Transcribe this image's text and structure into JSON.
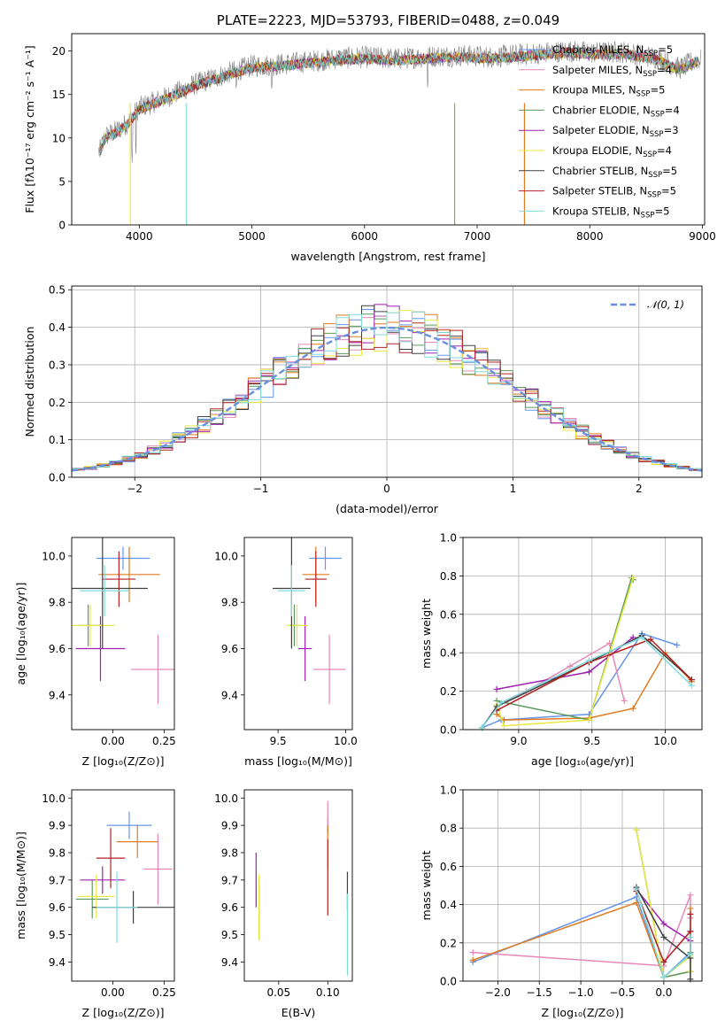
{
  "chart_data": [
    {
      "id": "spectrum",
      "type": "line",
      "title": "PLATE=2223, MJD=53793, FIBERID=0488, z=0.049",
      "xlabel": "wavelength [Angstrom, rest frame]",
      "ylabel": "Flux [fλ10⁻¹⁷ erg cm⁻² s⁻¹ A⁻¹]",
      "xlim": [
        3400,
        9020
      ],
      "ylim": [
        0,
        22
      ],
      "xticks": [
        4000,
        5000,
        6000,
        7000,
        8000,
        9000
      ],
      "yticks": [
        0,
        5,
        10,
        15,
        20
      ],
      "grid": false,
      "legend_position": "top-right",
      "data_color": "#808080",
      "spectrum_envelope": {
        "x": [
          3650,
          3700,
          3800,
          3900,
          4000,
          4100,
          4300,
          4500,
          4800,
          5000,
          5200,
          5500,
          5800,
          6000,
          6300,
          6600,
          6900,
          7100,
          7400,
          7600,
          7800,
          8000,
          8300,
          8600,
          8800,
          8950
        ],
        "y": [
          8.5,
          10.2,
          10.8,
          11.8,
          13.5,
          14.0,
          15.0,
          16.2,
          17.5,
          18.3,
          18.4,
          18.8,
          19.2,
          19.3,
          19.1,
          19.4,
          19.5,
          19.3,
          19.6,
          19.8,
          20.0,
          19.8,
          19.9,
          19.2,
          18.0,
          19.0
        ]
      },
      "legend": [
        {
          "label": "Chabrier MILES, N",
          "sub": "SSP",
          "val": "=5",
          "color": "#6495ED"
        },
        {
          "label": "Salpeter MILES, N",
          "sub": "SSP",
          "val": "=4",
          "color": "#E887B8"
        },
        {
          "label": "Kroupa MILES, N",
          "sub": "SSP",
          "val": "=5",
          "color": "#E07B20"
        },
        {
          "label": "Chabrier ELODIE, N",
          "sub": "SSP",
          "val": "=4",
          "color": "#5A9A5A"
        },
        {
          "label": "Salpeter ELODIE, N",
          "sub": "SSP",
          "val": "=3",
          "color": "#A020B0"
        },
        {
          "label": "Kroupa ELODIE, N",
          "sub": "SSP",
          "val": "=4",
          "color": "#E8E840"
        },
        {
          "label": "Chabrier STELIB, N",
          "sub": "SSP",
          "val": "=5",
          "color": "#404040"
        },
        {
          "label": "Salpeter STELIB, N",
          "sub": "SSP",
          "val": "=5",
          "color": "#B22222"
        },
        {
          "label": "Kroupa STELIB, N",
          "sub": "SSP",
          "val": "=5",
          "color": "#7FDBDB"
        }
      ]
    },
    {
      "id": "residuals",
      "type": "line",
      "xlabel": "(data-model)/error",
      "ylabel": "Normed distribution",
      "xlim": [
        -2.5,
        2.5
      ],
      "ylim": [
        0,
        0.51
      ],
      "xticks": [
        -2,
        -1,
        0,
        1,
        2
      ],
      "yticks": [
        0.0,
        0.1,
        0.2,
        0.3,
        0.4,
        0.5
      ],
      "grid": true,
      "legend_position": "top-right",
      "reference": {
        "label": "𝒩(0, 1)",
        "color": "#6A8FE0",
        "style": "dashed",
        "mean": 0,
        "sigma": 1
      },
      "bin_width": 0.1
    },
    {
      "id": "age_vs_Z",
      "type": "scatter",
      "xlabel": "Z [log₁₀(Z/Z⊙)]",
      "ylabel": "age  [log₁₀(age/yr)]",
      "xlim": [
        -0.2,
        0.3
      ],
      "ylim": [
        9.25,
        10.08
      ],
      "xticks": [
        0.0,
        0.25
      ],
      "yticks": [
        9.4,
        9.6,
        9.8,
        10.0
      ],
      "points": [
        {
          "x": 0.05,
          "y": 9.99,
          "xerr": 0.13,
          "yerr": 0.05,
          "color": "#6495ED"
        },
        {
          "x": 0.22,
          "y": 9.51,
          "xerr": 0.13,
          "yerr": 0.15,
          "color": "#E887B8"
        },
        {
          "x": 0.08,
          "y": 9.92,
          "xerr": 0.15,
          "yerr": 0.12,
          "color": "#E07B20"
        },
        {
          "x": -0.12,
          "y": 9.7,
          "xerr": 0.05,
          "yerr": 0.09,
          "color": "#5A9A5A"
        },
        {
          "x": -0.06,
          "y": 9.6,
          "xerr": 0.12,
          "yerr": 0.14,
          "color": "#A020B0"
        },
        {
          "x": -0.11,
          "y": 9.7,
          "xerr": 0.12,
          "yerr": 0.09,
          "color": "#E8E840"
        },
        {
          "x": -0.05,
          "y": 9.86,
          "xerr": 0.22,
          "yerr": 0.26,
          "color": "#404040"
        },
        {
          "x": 0.03,
          "y": 9.9,
          "xerr": 0.08,
          "yerr": 0.12,
          "color": "#B22222"
        },
        {
          "x": -0.04,
          "y": 9.85,
          "xerr": 0.12,
          "yerr": 0.11,
          "color": "#7FDBDB"
        }
      ]
    },
    {
      "id": "age_vs_mass",
      "type": "scatter",
      "xlabel": "mass [log₁₀(M/M⊙)]",
      "ylabel": "",
      "xlim": [
        9.25,
        10.05
      ],
      "ylim": [
        9.25,
        10.08
      ],
      "xticks": [
        9.5,
        10.0
      ],
      "yticks": [
        9.4,
        9.6,
        9.8,
        10.0
      ],
      "points": [
        {
          "x": 9.85,
          "y": 9.99,
          "xerr": 0.12,
          "yerr": 0.05,
          "color": "#6495ED"
        },
        {
          "x": 9.88,
          "y": 9.51,
          "xerr": 0.12,
          "yerr": 0.15,
          "color": "#E887B8"
        },
        {
          "x": 9.78,
          "y": 9.92,
          "xerr": 0.1,
          "yerr": 0.12,
          "color": "#E07B20"
        },
        {
          "x": 9.62,
          "y": 9.7,
          "xerr": 0.04,
          "yerr": 0.09,
          "color": "#5A9A5A"
        },
        {
          "x": 9.7,
          "y": 9.6,
          "xerr": 0.05,
          "yerr": 0.14,
          "color": "#A020B0"
        },
        {
          "x": 9.64,
          "y": 9.7,
          "xerr": 0.08,
          "yerr": 0.09,
          "color": "#E8E840"
        },
        {
          "x": 9.6,
          "y": 9.86,
          "xerr": 0.14,
          "yerr": 0.26,
          "color": "#404040"
        },
        {
          "x": 9.78,
          "y": 9.9,
          "xerr": 0.08,
          "yerr": 0.12,
          "color": "#B22222"
        },
        {
          "x": 9.6,
          "y": 9.85,
          "xerr": 0.1,
          "yerr": 0.11,
          "color": "#7FDBDB"
        }
      ]
    },
    {
      "id": "weights_vs_age",
      "type": "line",
      "xlabel": "age  [log₁₀(age/yr)]",
      "ylabel": "mass weight",
      "xlim": [
        8.62,
        10.25
      ],
      "ylim": [
        0,
        1.0
      ],
      "xticks": [
        9.0,
        9.5,
        10.0
      ],
      "yticks": [
        0.0,
        0.2,
        0.4,
        0.6,
        0.8,
        1.0
      ],
      "grid": true,
      "series": [
        {
          "color": "#6495ED",
          "x": [
            8.75,
            8.88,
            9.48,
            9.84,
            10.08
          ],
          "y": [
            0.01,
            0.05,
            0.08,
            0.5,
            0.44
          ]
        },
        {
          "color": "#E887B8",
          "x": [
            8.85,
            9.05,
            9.35,
            9.62,
            9.72
          ],
          "y": [
            0.12,
            0.2,
            0.33,
            0.45,
            0.15
          ]
        },
        {
          "color": "#E07B20",
          "x": [
            8.85,
            8.9,
            9.48,
            9.78,
            10.0,
            10.18
          ],
          "y": [
            0.08,
            0.05,
            0.06,
            0.11,
            0.4,
            0.25
          ]
        },
        {
          "color": "#5A9A5A",
          "x": [
            8.85,
            9.48,
            9.77,
            9.78
          ],
          "y": [
            0.15,
            0.05,
            0.79,
            0.78
          ]
        },
        {
          "color": "#A020B0",
          "x": [
            8.85,
            9.48,
            9.78
          ],
          "y": [
            0.21,
            0.3,
            0.48
          ]
        },
        {
          "color": "#E8E840",
          "x": [
            8.85,
            8.9,
            9.48,
            9.78
          ],
          "y": [
            0.13,
            0.02,
            0.05,
            0.79
          ]
        },
        {
          "color": "#404040",
          "x": [
            8.75,
            8.85,
            9.48,
            9.84,
            10.18
          ],
          "y": [
            0.01,
            0.12,
            0.35,
            0.49,
            0.26
          ]
        },
        {
          "color": "#B22222",
          "x": [
            8.85,
            9.48,
            9.9,
            10.18
          ],
          "y": [
            0.1,
            0.35,
            0.47,
            0.26
          ]
        },
        {
          "color": "#7FDBDB",
          "x": [
            8.75,
            8.88,
            9.48,
            9.84,
            10.18
          ],
          "y": [
            0.01,
            0.14,
            0.36,
            0.48,
            0.23
          ]
        }
      ]
    },
    {
      "id": "mass_vs_Z",
      "type": "scatter",
      "xlabel": "Z [log₁₀(Z/Z⊙)]",
      "ylabel": "mass [log₁₀(M/M⊙)]",
      "xlim": [
        -0.2,
        0.3
      ],
      "ylim": [
        9.33,
        10.03
      ],
      "xticks": [
        0.0,
        0.25
      ],
      "yticks": [
        9.4,
        9.5,
        9.6,
        9.7,
        9.8,
        9.9,
        10.0
      ],
      "points": [
        {
          "x": 0.08,
          "y": 9.9,
          "xerr": 0.11,
          "yerr": 0.05,
          "color": "#6495ED"
        },
        {
          "x": 0.22,
          "y": 9.74,
          "xerr": 0.07,
          "yerr": 0.13,
          "color": "#E887B8"
        },
        {
          "x": 0.12,
          "y": 9.84,
          "xerr": 0.1,
          "yerr": 0.06,
          "color": "#E07B20"
        },
        {
          "x": -0.1,
          "y": 9.63,
          "xerr": 0.08,
          "yerr": 0.07,
          "color": "#5A9A5A"
        },
        {
          "x": -0.05,
          "y": 9.7,
          "xerr": 0.11,
          "yerr": 0.05,
          "color": "#A020B0"
        },
        {
          "x": -0.08,
          "y": 9.64,
          "xerr": 0.09,
          "yerr": 0.08,
          "color": "#E8E840"
        },
        {
          "x": 0.1,
          "y": 9.6,
          "xerr": 0.2,
          "yerr": 0.06,
          "color": "#404040"
        },
        {
          "x": -0.01,
          "y": 9.78,
          "xerr": 0.07,
          "yerr": 0.11,
          "color": "#B22222"
        },
        {
          "x": 0.02,
          "y": 9.6,
          "xerr": 0.1,
          "yerr": 0.13,
          "color": "#7FDBDB"
        }
      ]
    },
    {
      "id": "mass_vs_ebv",
      "type": "scatter",
      "xlabel": "E(B-V)",
      "ylabel": "",
      "xlim": [
        0.015,
        0.125
      ],
      "ylim": [
        9.33,
        10.03
      ],
      "xticks": [
        0.05,
        0.1
      ],
      "yticks": [
        9.4,
        9.5,
        9.6,
        9.7,
        9.8,
        9.9,
        10.0
      ],
      "points": [
        {
          "x": 0.1,
          "y": 9.9,
          "xerr": 0,
          "yerr": 0.03,
          "color": "#6495ED"
        },
        {
          "x": 0.1,
          "y": 9.93,
          "xerr": 0,
          "yerr": 0.06,
          "color": "#E887B8"
        },
        {
          "x": 0.1,
          "y": 9.82,
          "xerr": 0,
          "yerr": 0.08,
          "color": "#E07B20"
        },
        {
          "x": 0.03,
          "y": 9.58,
          "xerr": 0,
          "yerr": 0.1,
          "color": "#5A9A5A"
        },
        {
          "x": 0.027,
          "y": 9.7,
          "xerr": 0,
          "yerr": 0.1,
          "color": "#A020B0"
        },
        {
          "x": 0.03,
          "y": 9.6,
          "xerr": 0,
          "yerr": 0.12,
          "color": "#E8E840"
        },
        {
          "x": 0.12,
          "y": 9.66,
          "xerr": 0,
          "yerr": 0.07,
          "color": "#404040"
        },
        {
          "x": 0.1,
          "y": 9.71,
          "xerr": 0,
          "yerr": 0.14,
          "color": "#B22222"
        },
        {
          "x": 0.12,
          "y": 9.5,
          "xerr": 0,
          "yerr": 0.15,
          "color": "#7FDBDB"
        }
      ]
    },
    {
      "id": "weights_vs_Z",
      "type": "line",
      "xlabel": "Z [log₁₀(Z/Z⊙)]",
      "ylabel": "mass weight",
      "xlim": [
        -2.42,
        0.46
      ],
      "ylim": [
        0,
        1.0
      ],
      "xticks": [
        -2.0,
        -1.5,
        -1.0,
        -0.5,
        0.0
      ],
      "yticks": [
        0.0,
        0.2,
        0.4,
        0.6,
        0.8,
        1.0
      ],
      "grid": true,
      "series": [
        {
          "color": "#6495ED",
          "x": [
            -2.3,
            -0.33,
            0.0,
            0.32
          ],
          "y": [
            0.1,
            0.44,
            0.02,
            0.15
          ]
        },
        {
          "color": "#E887B8",
          "x": [
            -2.3,
            0.0,
            0.32,
            0.32,
            0.32
          ],
          "y": [
            0.15,
            0.08,
            0.45,
            0.33,
            0.14
          ]
        },
        {
          "color": "#E07B20",
          "x": [
            -2.3,
            -0.33,
            0.0,
            0.32,
            0.32,
            0.32
          ],
          "y": [
            0.11,
            0.41,
            0.02,
            0.05,
            0.38,
            0.05
          ]
        },
        {
          "color": "#5A9A5A",
          "x": [
            -0.33,
            0.0,
            0.32,
            0.32
          ],
          "y": [
            0.79,
            0.02,
            0.05,
            0.15
          ]
        },
        {
          "color": "#A020B0",
          "x": [
            -0.33,
            0.0,
            0.32
          ],
          "y": [
            0.48,
            0.3,
            0.21
          ]
        },
        {
          "color": "#E8E840",
          "x": [
            -0.33,
            0.0,
            0.32,
            0.32
          ],
          "y": [
            0.79,
            0.02,
            0.13,
            0.05
          ]
        },
        {
          "color": "#404040",
          "x": [
            -0.33,
            0.0,
            0.32,
            0.32,
            0.32
          ],
          "y": [
            0.49,
            0.23,
            0.12,
            0.01,
            0.26
          ]
        },
        {
          "color": "#B22222",
          "x": [
            -0.33,
            0.0,
            0.32,
            0.32
          ],
          "y": [
            0.47,
            0.1,
            0.26,
            0.35
          ]
        },
        {
          "color": "#7FDBDB",
          "x": [
            -0.33,
            0.0,
            0.32,
            0.32
          ],
          "y": [
            0.48,
            0.02,
            0.14,
            0.23
          ]
        }
      ]
    }
  ]
}
